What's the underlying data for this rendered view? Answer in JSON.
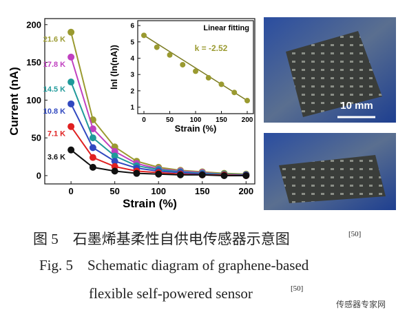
{
  "chart_data": [
    {
      "type": "line",
      "xlabel": "Strain (%)",
      "ylabel": "Current (nA)",
      "x": [
        0,
        25,
        50,
        75,
        100,
        125,
        150,
        175,
        200
      ],
      "series": [
        {
          "name": "21.6 K",
          "color": "#9a9a30",
          "values": [
            190,
            74,
            38,
            19,
            11,
            7,
            5,
            3,
            2
          ]
        },
        {
          "name": "17.8 K",
          "color": "#c040c0",
          "values": [
            157,
            62,
            32,
            16,
            9,
            6,
            4,
            2,
            1
          ]
        },
        {
          "name": "14.5 K",
          "color": "#209a9a",
          "values": [
            124,
            50,
            26,
            13,
            8,
            5,
            3,
            2,
            1
          ]
        },
        {
          "name": "10.8 K",
          "color": "#3048c0",
          "values": [
            95,
            37,
            19,
            10,
            6,
            4,
            2,
            1,
            1
          ]
        },
        {
          "name": "7.1 K",
          "color": "#e02020",
          "values": [
            65,
            24,
            12,
            6,
            4,
            2,
            1,
            1,
            0
          ]
        },
        {
          "name": "3.6 K",
          "color": "#111111",
          "values": [
            34,
            11,
            6,
            3,
            2,
            1,
            1,
            0,
            0
          ]
        }
      ],
      "xlim": [
        -30,
        210
      ],
      "xticks": [
        0,
        50,
        100,
        150,
        200
      ],
      "ylim": [
        -11,
        208
      ],
      "yticks": [
        0,
        50,
        100,
        150,
        200
      ]
    },
    {
      "type": "scatter",
      "xlabel": "Strain (%)",
      "ylabel": "lnI (ln(nA))",
      "annotation": "k = -2.52",
      "color": "#9a9a30",
      "x": [
        0,
        25,
        50,
        75,
        100,
        125,
        150,
        175,
        200
      ],
      "values": [
        5.4,
        4.67,
        4.2,
        3.6,
        3.2,
        2.8,
        2.4,
        1.9,
        1.4
      ],
      "fit": {
        "name": "Linear fitting",
        "color": "#7a7a20",
        "x": [
          0,
          200
        ],
        "values": [
          5.4,
          1.4
        ]
      },
      "xlim": [
        -12,
        212
      ],
      "xticks": [
        0,
        50,
        100,
        150,
        200
      ],
      "ylim": [
        0.6,
        6.3
      ],
      "yticks": [
        1,
        2,
        3,
        4,
        5,
        6
      ]
    }
  ],
  "photo_scale": "10 mm",
  "caption": {
    "cn": "图 5　石墨烯基柔性自供电传感器示意图",
    "cn_ref": "[50]",
    "en_line1": "Fig. 5　Schematic diagram of graphene-based",
    "en_line2": "flexible self-powered sensor",
    "en_ref": "[50]"
  },
  "watermark": "传感器专家网"
}
